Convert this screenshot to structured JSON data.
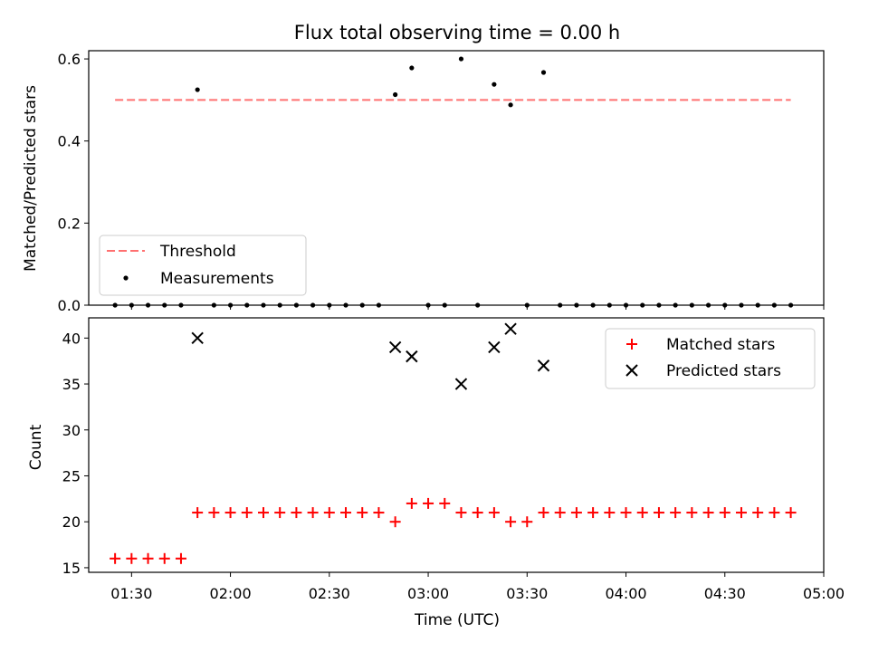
{
  "chart_data": [
    {
      "type": "scatter",
      "title": "Flux total observing time = 0.00 h",
      "xlabel": "",
      "ylabel": "Matched/Predicted stars",
      "ylim": [
        0,
        0.62
      ],
      "yticks": [
        0.0,
        0.2,
        0.4,
        0.6
      ],
      "ytick_labels": [
        "0.0",
        "0.2",
        "0.4",
        "0.6"
      ],
      "legend_position": "lower-left",
      "grid": false,
      "threshold": {
        "name": "Threshold",
        "value": 0.5,
        "x_start": "01:25",
        "x_end": "04:50",
        "color": "#ff7070",
        "style": "dashed"
      },
      "series": [
        {
          "name": "Measurements",
          "color": "#000000",
          "x": [
            "01:25",
            "01:30",
            "01:35",
            "01:40",
            "01:45",
            "01:50",
            "01:55",
            "02:00",
            "02:05",
            "02:10",
            "02:15",
            "02:20",
            "02:25",
            "02:30",
            "02:35",
            "02:40",
            "02:45",
            "02:50",
            "02:55",
            "03:00",
            "03:05",
            "03:10",
            "03:15",
            "03:20",
            "03:25",
            "03:30",
            "03:35",
            "03:40",
            "03:45",
            "03:50",
            "03:55",
            "04:00",
            "04:05",
            "04:10",
            "04:15",
            "04:20",
            "04:25",
            "04:30",
            "04:35",
            "04:40",
            "04:45",
            "04:50"
          ],
          "y": [
            0,
            0,
            0,
            0,
            0,
            0.525,
            0,
            0,
            0,
            0,
            0,
            0,
            0,
            0,
            0,
            0,
            0,
            0.513,
            0.578,
            0,
            0,
            0.6,
            0,
            0.538,
            0.488,
            0,
            0.567,
            0,
            0,
            0,
            0,
            0,
            0,
            0,
            0,
            0,
            0,
            0,
            0,
            0,
            0,
            0
          ]
        }
      ]
    },
    {
      "type": "scatter",
      "xlabel": "Time (UTC)",
      "ylabel": "Count",
      "xlim": [
        "01:17",
        "05:00"
      ],
      "ylim": [
        14.5,
        42.2
      ],
      "xticks": [
        "01:30",
        "02:00",
        "02:30",
        "03:00",
        "03:30",
        "04:00",
        "04:30",
        "05:00"
      ],
      "xtick_labels": [
        "01:30",
        "02:00",
        "02:30",
        "03:00",
        "03:30",
        "04:00",
        "04:30",
        "05:00"
      ],
      "yticks": [
        15,
        20,
        25,
        30,
        35,
        40
      ],
      "ytick_labels": [
        "15",
        "20",
        "25",
        "30",
        "35",
        "40"
      ],
      "legend_position": "upper-right",
      "grid": false,
      "series": [
        {
          "name": "Matched stars",
          "marker": "plus",
          "color": "#ff0000",
          "x": [
            "01:25",
            "01:30",
            "01:35",
            "01:40",
            "01:45",
            "01:50",
            "01:55",
            "02:00",
            "02:05",
            "02:10",
            "02:15",
            "02:20",
            "02:25",
            "02:30",
            "02:35",
            "02:40",
            "02:45",
            "02:50",
            "02:55",
            "03:00",
            "03:05",
            "03:10",
            "03:15",
            "03:20",
            "03:25",
            "03:30",
            "03:35",
            "03:40",
            "03:45",
            "03:50",
            "03:55",
            "04:00",
            "04:05",
            "04:10",
            "04:15",
            "04:20",
            "04:25",
            "04:30",
            "04:35",
            "04:40",
            "04:45",
            "04:50"
          ],
          "y": [
            16,
            16,
            16,
            16,
            16,
            21,
            21,
            21,
            21,
            21,
            21,
            21,
            21,
            21,
            21,
            21,
            21,
            20,
            22,
            22,
            22,
            21,
            21,
            21,
            20,
            20,
            21,
            21,
            21,
            21,
            21,
            21,
            21,
            21,
            21,
            21,
            21,
            21,
            21,
            21,
            21,
            21
          ]
        },
        {
          "name": "Predicted stars",
          "marker": "x",
          "color": "#000000",
          "x": [
            "01:50",
            "02:50",
            "02:55",
            "03:10",
            "03:20",
            "03:25",
            "03:35"
          ],
          "y": [
            40,
            39,
            38,
            35,
            39,
            41,
            37
          ]
        }
      ]
    }
  ]
}
